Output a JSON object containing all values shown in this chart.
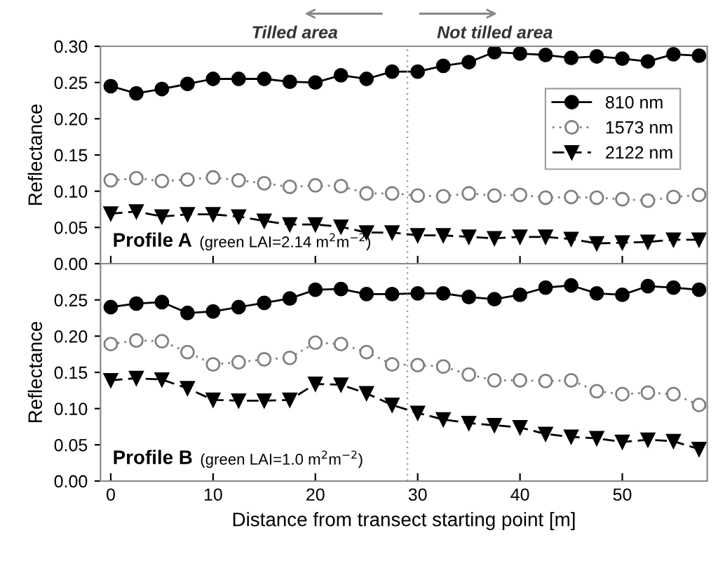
{
  "chart_data": [
    {
      "type": "line",
      "ylabel": "Reflectance",
      "annotations": [
        "Tilled area",
        "Not tilled area",
        "Profile A",
        "(green LAI=2.14 m$^{2}$m$^{−2}$)"
      ],
      "x": [
        0,
        2.5,
        5,
        7.5,
        10,
        12.5,
        15,
        17.5,
        20,
        22.5,
        25,
        27.5,
        30,
        32.5,
        35,
        37.5,
        40,
        42.5,
        45,
        47.5,
        50,
        52.5,
        55,
        57.5
      ],
      "xlim": [
        -1,
        58.3
      ],
      "xticks": [
        0,
        10,
        20,
        30,
        40,
        50
      ],
      "ylim": [
        0,
        0.3
      ],
      "yticks": [
        {
          "value": 0,
          "label": "0.00"
        },
        {
          "value": 0.05,
          "label": "0.05"
        },
        {
          "value": 0.1,
          "label": "0.10"
        },
        {
          "value": 0.15,
          "label": "0.15"
        },
        {
          "value": 0.2,
          "label": "0.20"
        },
        {
          "value": 0.25,
          "label": "0.25"
        },
        {
          "value": 0.3,
          "label": "0.30"
        }
      ],
      "tick_labels": "y",
      "grid": false,
      "legend": "right",
      "ref_lines": [
        {
          "axis": "x",
          "value": 29,
          "color": "#999999",
          "line_style": "dotted"
        }
      ],
      "series": [
        {
          "name": "810 nm",
          "color": "#000000",
          "marker": "circle",
          "line_style": "solid",
          "values": [
            0.245,
            0.235,
            0.241,
            0.248,
            0.255,
            0.255,
            0.255,
            0.251,
            0.25,
            0.26,
            0.255,
            0.265,
            0.265,
            0.273,
            0.278,
            0.292,
            0.29,
            0.288,
            0.284,
            0.286,
            0.283,
            0.279,
            0.289,
            0.287
          ]
        },
        {
          "name": "1573 nm",
          "color": "#808080",
          "marker": "circle",
          "line_style": "dotted",
          "values": [
            0.115,
            0.118,
            0.114,
            0.116,
            0.119,
            0.115,
            0.111,
            0.106,
            0.108,
            0.107,
            0.097,
            0.097,
            0.094,
            0.093,
            0.097,
            0.094,
            0.095,
            0.091,
            0.092,
            0.091,
            0.089,
            0.087,
            0.092,
            0.095
          ]
        },
        {
          "name": "2122 nm",
          "color": "#000000",
          "marker": "triangle",
          "line_style": "dashed",
          "values": [
            0.069,
            0.072,
            0.065,
            0.068,
            0.068,
            0.065,
            0.059,
            0.054,
            0.054,
            0.051,
            0.043,
            0.043,
            0.039,
            0.039,
            0.037,
            0.035,
            0.037,
            0.037,
            0.034,
            0.028,
            0.029,
            0.03,
            0.033,
            0.033
          ]
        }
      ]
    },
    {
      "type": "line",
      "ylabel": "Reflectance",
      "xlabel": "Distance from transect starting point [m]",
      "annotations": [
        "Profile B",
        "(green LAI=1.0 m$^{2}$m$^{−2}$)"
      ],
      "x": [
        0,
        2.5,
        5,
        7.5,
        10,
        12.5,
        15,
        17.5,
        20,
        22.5,
        25,
        27.5,
        30,
        32.5,
        35,
        37.5,
        40,
        42.5,
        45,
        47.5,
        50,
        52.5,
        55,
        57.5
      ],
      "xlim": [
        -1,
        58.3
      ],
      "xticks": [
        0,
        10,
        20,
        30,
        40,
        50
      ],
      "ylim": [
        0,
        0.3
      ],
      "yticks": [
        {
          "value": 0,
          "label": "0.00"
        },
        {
          "value": 0.05,
          "label": "0.05"
        },
        {
          "value": 0.1,
          "label": "0.10"
        },
        {
          "value": 0.15,
          "label": "0.15"
        },
        {
          "value": 0.2,
          "label": "0.20"
        },
        {
          "value": 0.25,
          "label": "0.25"
        }
      ],
      "grid": false,
      "ref_lines": [
        {
          "axis": "x",
          "value": 29,
          "color": "#999999",
          "line_style": "dotted"
        }
      ],
      "series": [
        {
          "color": "#000000",
          "marker": "circle",
          "line_style": "solid",
          "values": [
            0.24,
            0.245,
            0.247,
            0.232,
            0.234,
            0.24,
            0.246,
            0.252,
            0.264,
            0.265,
            0.258,
            0.258,
            0.259,
            0.259,
            0.254,
            0.251,
            0.257,
            0.267,
            0.27,
            0.259,
            0.257,
            0.269,
            0.267,
            0.264
          ]
        },
        {
          "color": "#808080",
          "marker": "circle",
          "line_style": "dotted",
          "values": [
            0.189,
            0.194,
            0.193,
            0.178,
            0.161,
            0.164,
            0.168,
            0.17,
            0.191,
            0.189,
            0.178,
            0.161,
            0.16,
            0.158,
            0.147,
            0.139,
            0.139,
            0.138,
            0.139,
            0.124,
            0.12,
            0.122,
            0.12,
            0.105
          ]
        },
        {
          "color": "#000000",
          "marker": "triangle",
          "line_style": "dashed",
          "values": [
            0.139,
            0.142,
            0.14,
            0.128,
            0.112,
            0.111,
            0.111,
            0.112,
            0.134,
            0.133,
            0.121,
            0.105,
            0.094,
            0.085,
            0.08,
            0.077,
            0.074,
            0.065,
            0.061,
            0.059,
            0.054,
            0.057,
            0.055,
            0.044
          ]
        }
      ]
    }
  ]
}
